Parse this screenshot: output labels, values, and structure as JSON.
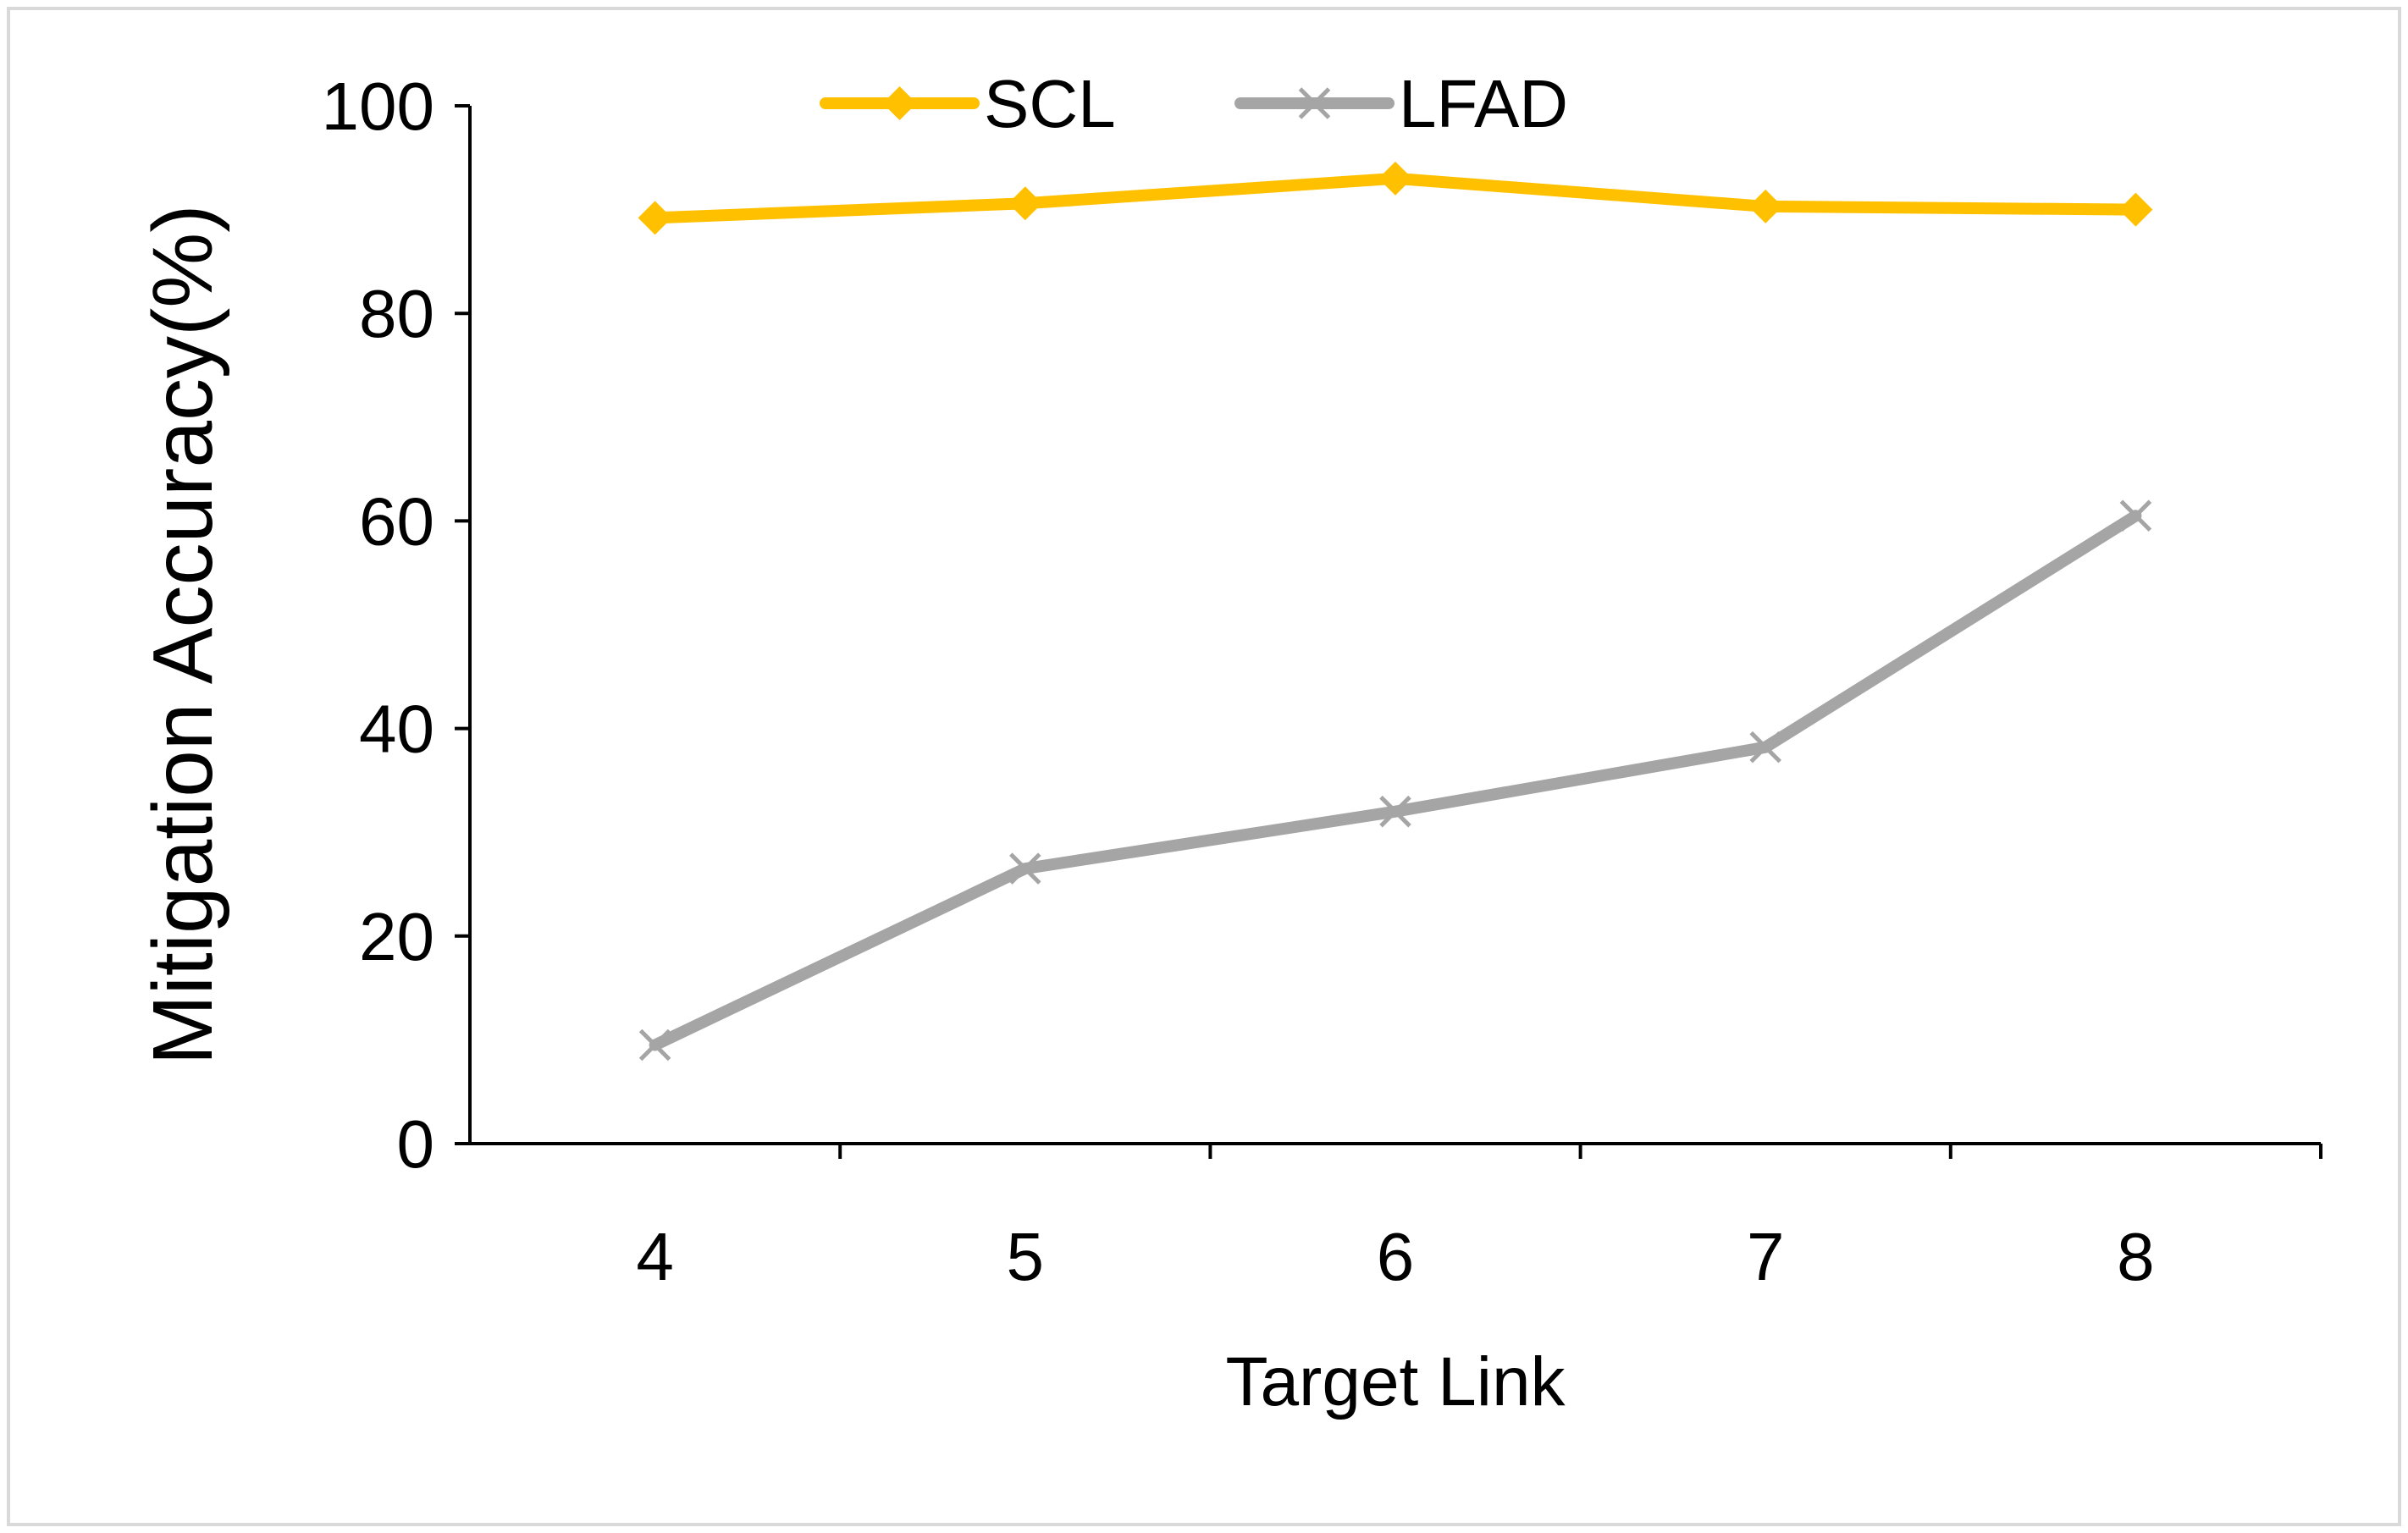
{
  "chart_data": {
    "type": "line",
    "title": "",
    "xlabel": "Target Link",
    "ylabel": "Mitigation Accuracy(%)",
    "categories": [
      "4",
      "5",
      "6",
      "7",
      "8"
    ],
    "ylim": [
      0,
      100
    ],
    "yticks": [
      0,
      20,
      40,
      60,
      80,
      100
    ],
    "grid": false,
    "legend_position": "top-center",
    "series": [
      {
        "name": "SCL",
        "values": [
          89.2,
          90.6,
          93.0,
          90.3,
          90.0
        ],
        "color": "#FFC000",
        "marker": "diamond"
      },
      {
        "name": "LFAD",
        "values": [
          9.5,
          26.5,
          32.0,
          38.2,
          60.5
        ],
        "color": "#A5A5A5",
        "marker": "x"
      }
    ]
  }
}
